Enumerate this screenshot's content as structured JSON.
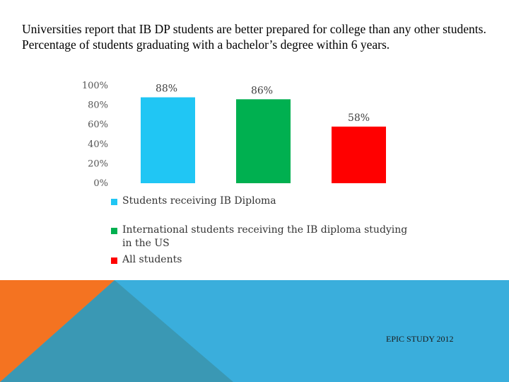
{
  "heading": "Universities report that IB DP students are better prepared for college than any other students. Percentage of students graduating with a bachelor’s degree within 6 years.",
  "source": "EPIC STUDY 2012",
  "colors": {
    "footer_blue": "#3aaedc",
    "footer_orange": "#f47321",
    "footer_teal": "#3a98b4"
  },
  "chart_data": {
    "type": "bar",
    "ylim": [
      0,
      100
    ],
    "y_ticks": [
      {
        "value": 100,
        "label": "100%"
      },
      {
        "value": 80,
        "label": "80%"
      },
      {
        "value": 60,
        "label": "60%"
      },
      {
        "value": 40,
        "label": "40%"
      },
      {
        "value": 20,
        "label": "20%"
      },
      {
        "value": 0,
        "label": "0%"
      }
    ],
    "series": [
      {
        "name": "Students receiving IB Diploma",
        "value": 88,
        "label": "88%",
        "color": "#20c6f4"
      },
      {
        "name": "International students receiving the IB diploma studying in the US",
        "value": 86,
        "label": "86%",
        "color": "#00b050"
      },
      {
        "name": "All students",
        "value": 58,
        "label": "58%",
        "color": "#ff0000"
      }
    ],
    "grid": false,
    "legend_position": "bottom-left"
  }
}
